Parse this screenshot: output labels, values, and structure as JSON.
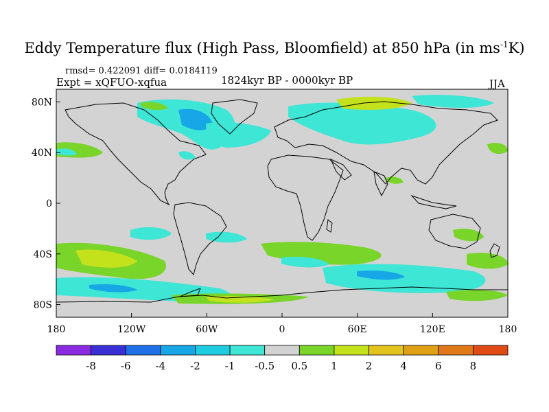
{
  "title": {
    "main": "Eddy Temperature flux (High Pass, Bloomfield) at 850 hPa (in ms",
    "sup": "-1",
    "tail": "K)"
  },
  "stats_line": "rmsd= 0.422091 diff= 0.0184119",
  "expt_line": "Expt = xQFUO-xqfua",
  "period": "1824kyr BP - 0000kyr BP",
  "season": "JJA",
  "map": {
    "lon_range": [
      -180,
      180
    ],
    "lat_range": [
      -90,
      90
    ],
    "x_ticks": [
      {
        "lon": -180,
        "label": "180"
      },
      {
        "lon": -120,
        "label": "120W"
      },
      {
        "lon": -60,
        "label": "60W"
      },
      {
        "lon": 0,
        "label": "0"
      },
      {
        "lon": 60,
        "label": "60E"
      },
      {
        "lon": 120,
        "label": "120E"
      },
      {
        "lon": 180,
        "label": "180"
      }
    ],
    "y_ticks": [
      {
        "lat": 80,
        "label": "80N"
      },
      {
        "lat": 40,
        "label": "40N"
      },
      {
        "lat": 0,
        "label": "0"
      },
      {
        "lat": -40,
        "label": "40S"
      },
      {
        "lat": -80,
        "label": "80S"
      }
    ],
    "background_color": "#d3d3d3"
  },
  "colorbar": {
    "colors": [
      "#8a2be2",
      "#3a2fd6",
      "#1f6fe6",
      "#17a6e6",
      "#1ecce0",
      "#3ee6d6",
      "#d3d3d3",
      "#7ad52a",
      "#c4e21c",
      "#e2c21c",
      "#e0a015",
      "#e07818",
      "#e04a14"
    ],
    "labels": [
      "-8",
      "-6",
      "-4",
      "-2",
      "-1",
      "-0.5",
      "0.5",
      "1",
      "2",
      "4",
      "6",
      "8"
    ]
  }
}
